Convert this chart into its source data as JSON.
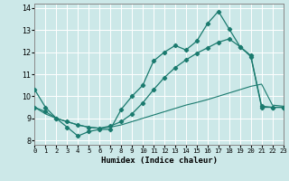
{
  "xlabel": "Humidex (Indice chaleur)",
  "bg_color": "#cce8e8",
  "grid_color": "#ffffff",
  "line_color": "#1a7a6e",
  "xlim": [
    0,
    23
  ],
  "ylim": [
    7.8,
    14.2
  ],
  "xticks": [
    0,
    1,
    2,
    3,
    4,
    5,
    6,
    7,
    8,
    9,
    10,
    11,
    12,
    13,
    14,
    15,
    16,
    17,
    18,
    19,
    20,
    21,
    22,
    23
  ],
  "yticks": [
    8,
    9,
    10,
    11,
    12,
    13,
    14
  ],
  "series1_x": [
    0,
    1,
    2,
    3,
    4,
    5,
    6,
    7,
    8,
    9,
    10,
    11,
    12,
    13,
    14,
    15,
    16,
    17,
    18,
    19,
    20,
    21,
    22,
    23
  ],
  "series1_y": [
    10.3,
    9.5,
    9.0,
    8.6,
    8.2,
    8.4,
    8.5,
    8.5,
    9.4,
    10.0,
    10.5,
    11.6,
    12.0,
    12.3,
    12.1,
    12.5,
    13.3,
    13.85,
    13.05,
    12.25,
    11.8,
    9.5,
    9.5,
    9.5
  ],
  "series2_x": [
    0,
    1,
    2,
    3,
    4,
    5,
    6,
    7,
    8,
    9,
    10,
    11,
    12,
    13,
    14,
    15,
    16,
    17,
    18,
    19,
    20,
    21,
    22,
    23
  ],
  "series2_y": [
    9.5,
    9.2,
    9.0,
    8.85,
    8.7,
    8.6,
    8.55,
    8.6,
    8.7,
    8.85,
    9.0,
    9.15,
    9.3,
    9.45,
    9.6,
    9.72,
    9.85,
    10.0,
    10.15,
    10.3,
    10.45,
    10.55,
    9.6,
    9.55
  ],
  "series3_x": [
    0,
    1,
    2,
    3,
    4,
    5,
    6,
    7,
    8,
    9,
    10,
    11,
    12,
    13,
    14,
    15,
    16,
    17,
    18,
    19,
    20,
    21,
    22,
    23
  ],
  "series3_y": [
    9.5,
    9.3,
    9.0,
    8.85,
    8.7,
    8.6,
    8.55,
    8.65,
    8.85,
    9.2,
    9.7,
    10.3,
    10.85,
    11.3,
    11.65,
    11.95,
    12.2,
    12.45,
    12.6,
    12.25,
    11.85,
    9.55,
    9.5,
    9.5
  ]
}
